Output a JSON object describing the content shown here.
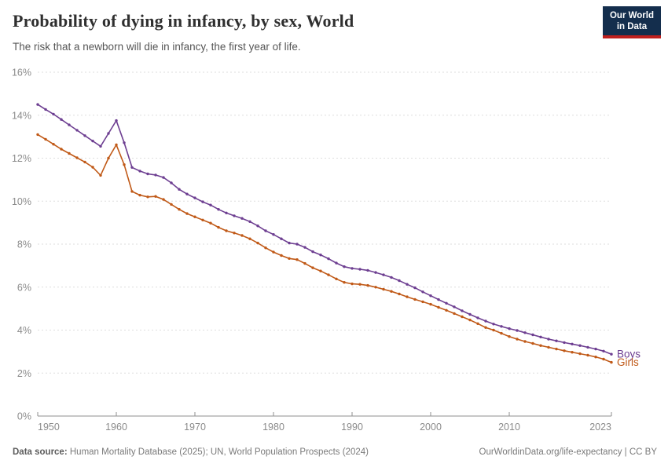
{
  "header": {
    "title": "Probability of dying in infancy, by sex, World",
    "subtitle": "The risk that a newborn will die in infancy, the first year of life.",
    "logo": {
      "line1": "Our World",
      "line2": "in Data",
      "bg_color": "#142E4D",
      "accent_color": "#C0201E"
    }
  },
  "chart_data": {
    "type": "line",
    "title": "Probability of dying in infancy, by sex, World",
    "xlabel": "",
    "ylabel": "",
    "ylim": [
      0,
      16
    ],
    "ytick_suffix": "%",
    "yticks": [
      0,
      2,
      4,
      6,
      8,
      10,
      12,
      14,
      16
    ],
    "xticks": [
      1950,
      1960,
      1970,
      1980,
      1990,
      2000,
      2010,
      2023
    ],
    "grid": "horizontal-dashed",
    "gridline_color": "#dedede",
    "axis_color": "#8f8f8f",
    "legend_position": "end-of-line",
    "x": [
      1950,
      1951,
      1952,
      1953,
      1954,
      1955,
      1956,
      1957,
      1958,
      1959,
      1960,
      1961,
      1962,
      1963,
      1964,
      1965,
      1966,
      1967,
      1968,
      1969,
      1970,
      1971,
      1972,
      1973,
      1974,
      1975,
      1976,
      1977,
      1978,
      1979,
      1980,
      1981,
      1982,
      1983,
      1984,
      1985,
      1986,
      1987,
      1988,
      1989,
      1990,
      1991,
      1992,
      1993,
      1994,
      1995,
      1996,
      1997,
      1998,
      1999,
      2000,
      2001,
      2002,
      2003,
      2004,
      2005,
      2006,
      2007,
      2008,
      2009,
      2010,
      2011,
      2012,
      2013,
      2014,
      2015,
      2016,
      2017,
      2018,
      2019,
      2020,
      2021,
      2022,
      2023
    ],
    "series": [
      {
        "name": "Boys",
        "color": "#6D3E91",
        "values": [
          14.5,
          14.27,
          14.05,
          13.8,
          13.55,
          13.3,
          13.05,
          12.8,
          12.55,
          13.15,
          13.75,
          12.72,
          11.57,
          11.4,
          11.27,
          11.22,
          11.1,
          10.85,
          10.55,
          10.33,
          10.15,
          9.97,
          9.82,
          9.62,
          9.45,
          9.32,
          9.2,
          9.05,
          8.85,
          8.62,
          8.45,
          8.25,
          8.05,
          8.0,
          7.85,
          7.65,
          7.5,
          7.32,
          7.12,
          6.95,
          6.87,
          6.83,
          6.78,
          6.68,
          6.57,
          6.45,
          6.3,
          6.13,
          5.97,
          5.78,
          5.6,
          5.42,
          5.25,
          5.08,
          4.9,
          4.73,
          4.57,
          4.42,
          4.28,
          4.17,
          4.07,
          3.98,
          3.88,
          3.78,
          3.68,
          3.58,
          3.5,
          3.42,
          3.35,
          3.28,
          3.2,
          3.12,
          3.02,
          2.88
        ]
      },
      {
        "name": "Girls",
        "color": "#C05917",
        "values": [
          13.1,
          12.88,
          12.65,
          12.42,
          12.22,
          12.02,
          11.82,
          11.58,
          11.2,
          12.0,
          12.62,
          11.7,
          10.45,
          10.28,
          10.2,
          10.22,
          10.08,
          9.85,
          9.62,
          9.42,
          9.27,
          9.12,
          8.98,
          8.78,
          8.62,
          8.52,
          8.4,
          8.25,
          8.05,
          7.83,
          7.63,
          7.47,
          7.33,
          7.28,
          7.1,
          6.9,
          6.75,
          6.57,
          6.38,
          6.22,
          6.15,
          6.13,
          6.08,
          6.0,
          5.9,
          5.8,
          5.68,
          5.55,
          5.43,
          5.32,
          5.2,
          5.06,
          4.92,
          4.77,
          4.62,
          4.47,
          4.3,
          4.12,
          4.0,
          3.85,
          3.7,
          3.58,
          3.47,
          3.38,
          3.28,
          3.2,
          3.12,
          3.04,
          2.97,
          2.9,
          2.83,
          2.75,
          2.65,
          2.5
        ]
      }
    ]
  },
  "footer": {
    "source_label": "Data source:",
    "sources": "Human Mortality Database (2025); UN, World Population Prospects (2024)",
    "link": "OurWorldinData.org/life-expectancy | CC BY"
  }
}
